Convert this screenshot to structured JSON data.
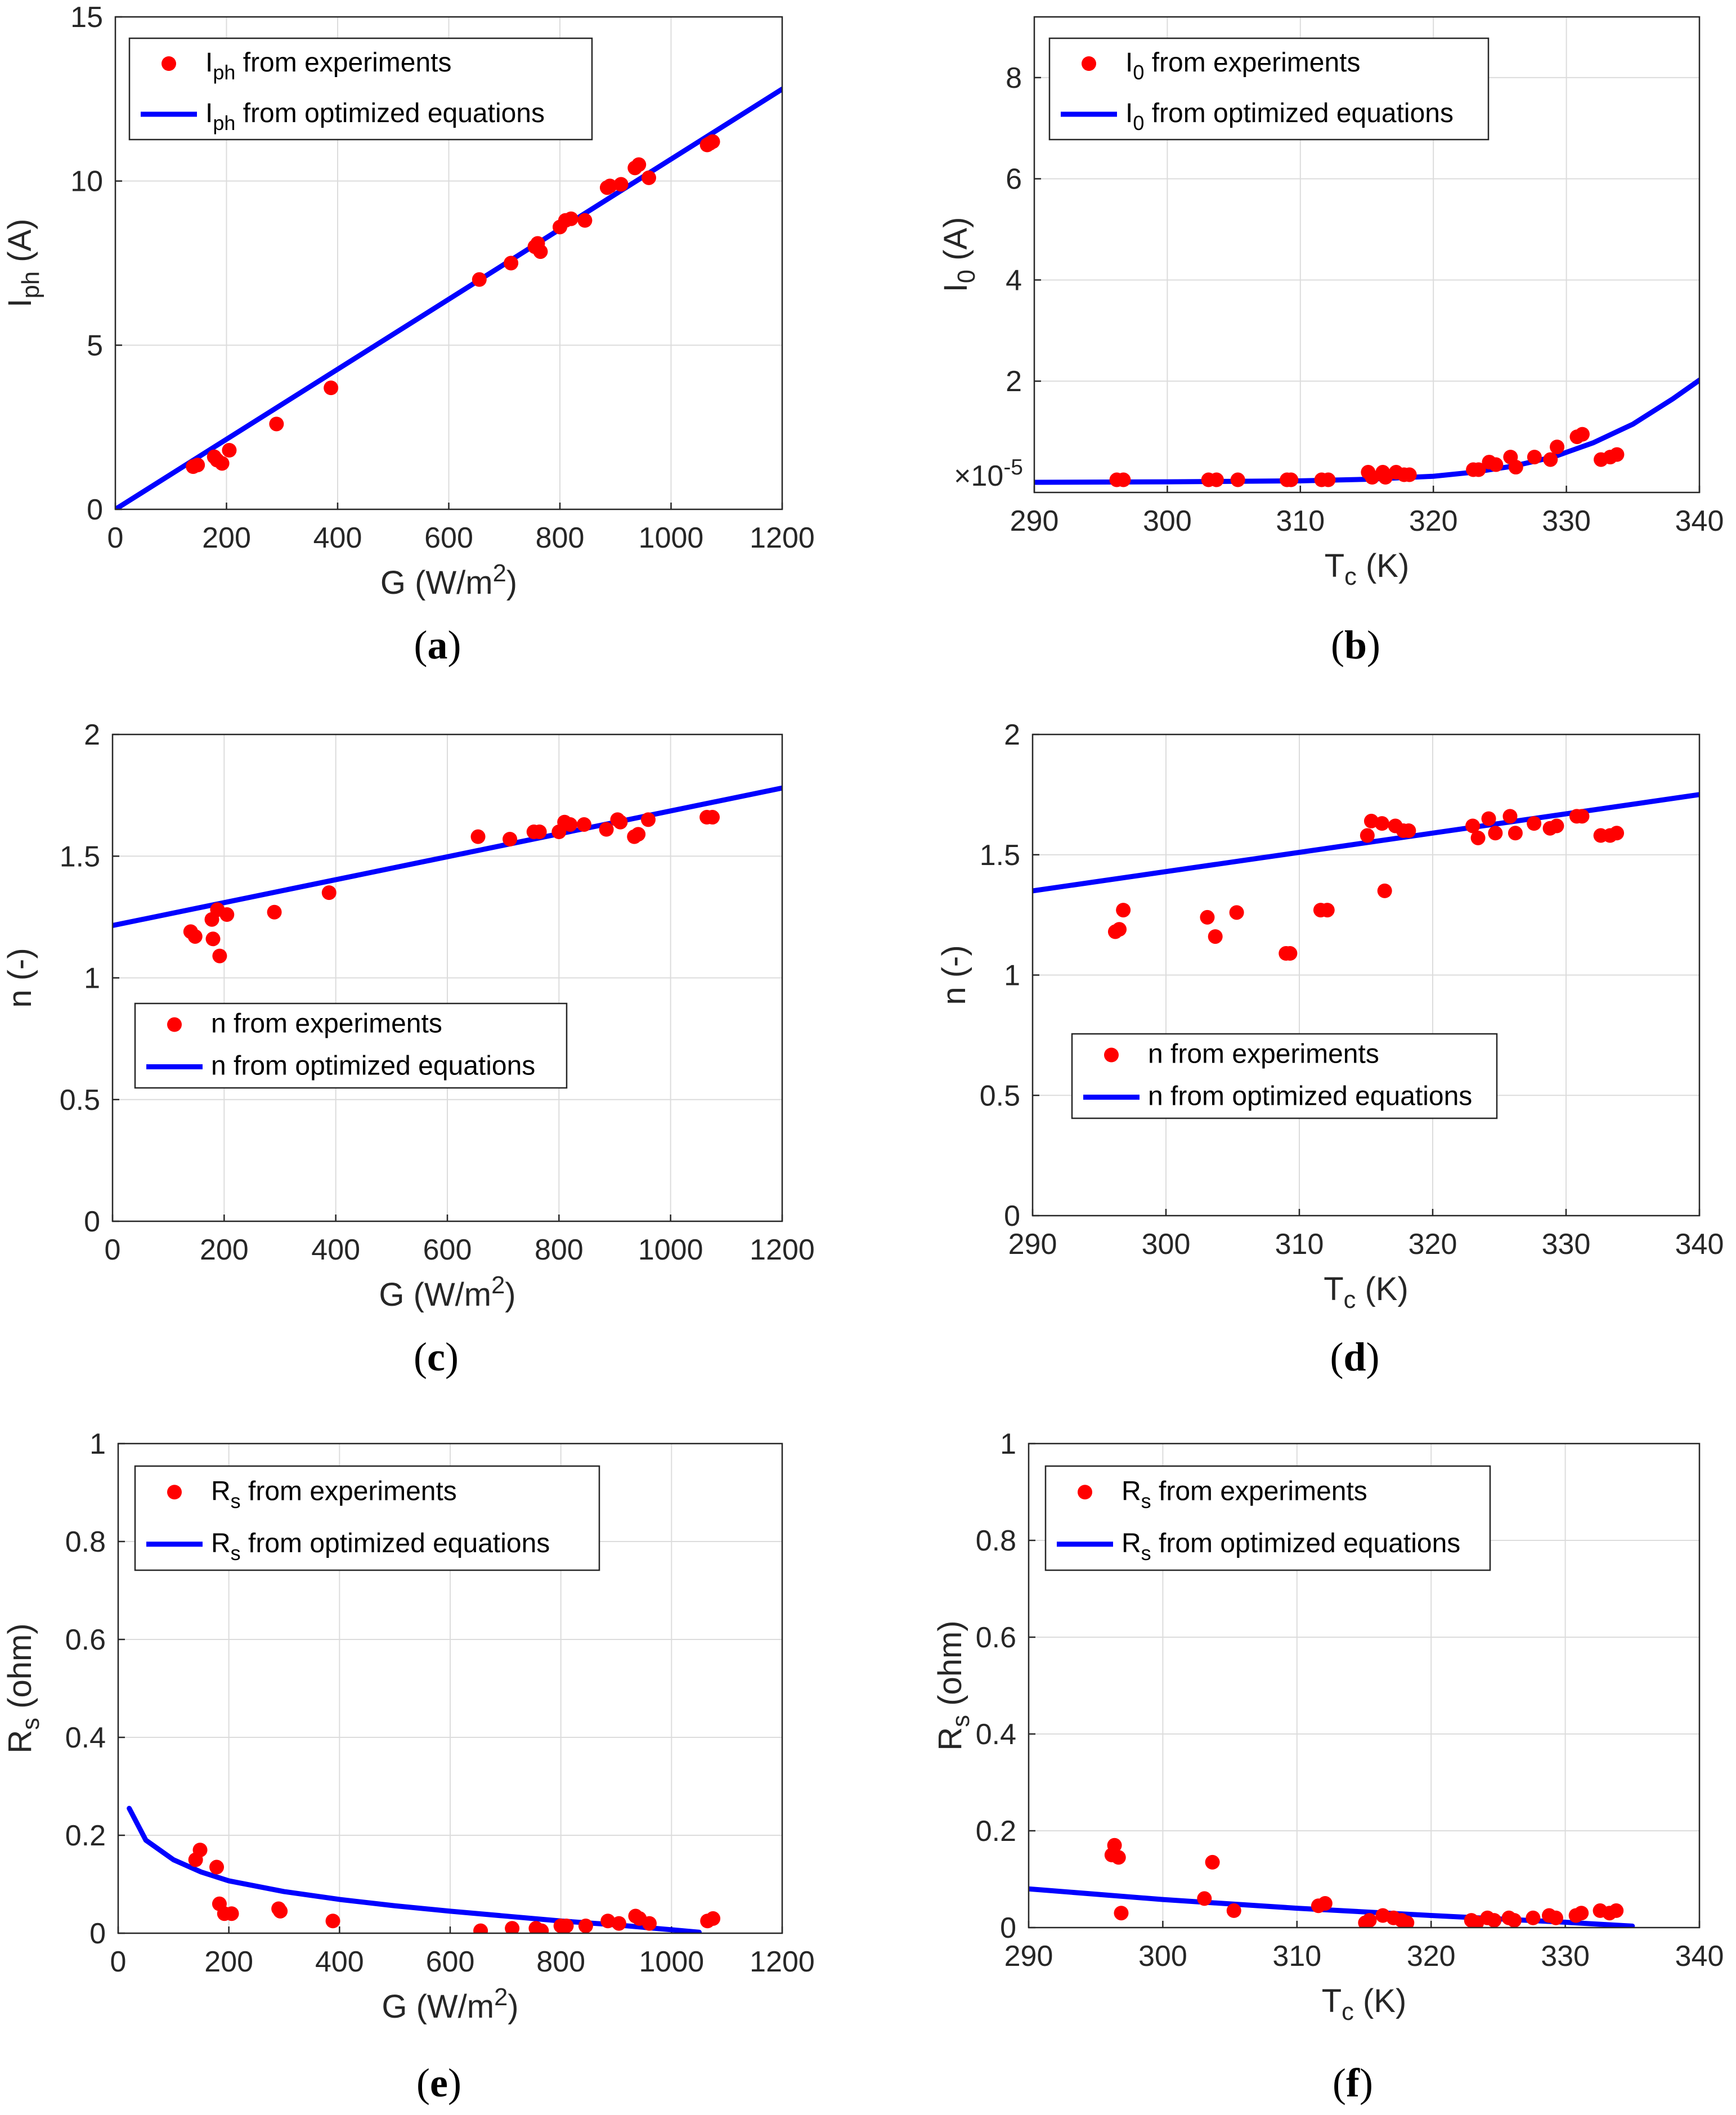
{
  "chart_data": [
    {
      "type": "scatter",
      "panel": "(a)",
      "caption_letter": "a",
      "xlabel": "G (W/m",
      "xlabel_sup": "2",
      "xlabel_after": ")",
      "ylabel": "I",
      "ylabel_sub": "ph",
      "ylabel_after": " (A)",
      "xlim": [
        0,
        1200
      ],
      "ylim": [
        0,
        15
      ],
      "xticks": [
        "0",
        "200",
        "400",
        "600",
        "800",
        "1000",
        "1200"
      ],
      "yticks": [
        "0",
        "5",
        "10",
        "15"
      ],
      "legend_position": "top-left",
      "exponent_label": "",
      "series": [
        {
          "name": "I_ph from experiments",
          "kind": "points",
          "color": "#ff0000",
          "legend_main": "I",
          "legend_sub": "ph",
          "legend_rest": " from experiments",
          "x": [
            140,
            148,
            178,
            183,
            192,
            205,
            290,
            388,
            655,
            712,
            755,
            760,
            765,
            800,
            810,
            820,
            845,
            885,
            890,
            910,
            935,
            942,
            960,
            1065,
            1070,
            1075
          ],
          "y": [
            1.3,
            1.35,
            1.6,
            1.5,
            1.4,
            1.8,
            2.6,
            3.7,
            7.0,
            7.5,
            8.0,
            8.1,
            7.85,
            8.6,
            8.8,
            8.85,
            8.8,
            9.8,
            9.85,
            9.9,
            10.4,
            10.5,
            10.1,
            11.1,
            11.15,
            11.2
          ]
        },
        {
          "name": "I_ph from optimized equations",
          "kind": "line",
          "color": "#0000ff",
          "legend_main": "I",
          "legend_sub": "ph",
          "legend_rest": " from optimized equations",
          "x": [
            0,
            1200
          ],
          "y": [
            0,
            12.8
          ]
        }
      ]
    },
    {
      "type": "scatter",
      "panel": "(b)",
      "caption_letter": "b",
      "xlabel": "T",
      "xlabel_sub": "c",
      "xlabel_after": " (K)",
      "ylabel": "I",
      "ylabel_sub": "0",
      "ylabel_after": " (A)",
      "xlim": [
        290,
        340
      ],
      "ylim": [
        -0.2,
        9.2
      ],
      "xticks": [
        "290",
        "300",
        "310",
        "320",
        "330",
        "340"
      ],
      "yticks": [
        "2",
        "4",
        "6",
        "8"
      ],
      "ytick_values": [
        2,
        4,
        6,
        8
      ],
      "legend_position": "top-left",
      "exponent_label": "×10",
      "exponent_sup": "-5",
      "series": [
        {
          "name": "I_0 from experiments",
          "kind": "points",
          "color": "#ff0000",
          "legend_main": "I",
          "legend_sub": "0",
          "legend_rest": " from experiments",
          "x": [
            296.2,
            296.7,
            303.1,
            303.7,
            305.3,
            309,
            309.3,
            311.6,
            312.1,
            315.1,
            315.4,
            316.2,
            316.4,
            317.2,
            317.8,
            318.2,
            323,
            323.4,
            324.2,
            324.7,
            325.8,
            326.2,
            327.6,
            328.8,
            329.3,
            330.8,
            331.2,
            332.6,
            333.3,
            333.8
          ],
          "y": [
            0.05,
            0.05,
            0.05,
            0.05,
            0.05,
            0.05,
            0.05,
            0.05,
            0.05,
            0.2,
            0.1,
            0.2,
            0.1,
            0.2,
            0.15,
            0.15,
            0.25,
            0.25,
            0.4,
            0.35,
            0.5,
            0.3,
            0.5,
            0.45,
            0.7,
            0.9,
            0.95,
            0.45,
            0.5,
            0.55
          ]
        },
        {
          "name": "I_0 from optimized equations",
          "kind": "line",
          "color": "#0000ff",
          "legend_main": "I",
          "legend_sub": "0",
          "legend_rest": " from optimized equations",
          "x": [
            290,
            300,
            310,
            315,
            320,
            323,
            326,
            329,
            332,
            335,
            338,
            340
          ],
          "y": [
            0.0,
            0.01,
            0.03,
            0.06,
            0.12,
            0.2,
            0.32,
            0.5,
            0.78,
            1.15,
            1.65,
            2.02
          ]
        }
      ]
    },
    {
      "type": "scatter",
      "panel": "(c)",
      "caption_letter": "c",
      "xlabel": "G (W/m",
      "xlabel_sup": "2",
      "xlabel_after": ")",
      "ylabel": "n (-)",
      "xlim": [
        0,
        1200
      ],
      "ylim": [
        0,
        2
      ],
      "xticks": [
        "0",
        "200",
        "400",
        "600",
        "800",
        "1000",
        "1200"
      ],
      "yticks": [
        "0",
        "0.5",
        "1",
        "1.5",
        "2"
      ],
      "legend_position": "lower-left",
      "exponent_label": "",
      "series": [
        {
          "name": "n from experiments",
          "kind": "points",
          "color": "#ff0000",
          "legend_main": "n from experiments",
          "legend_sub": "",
          "legend_rest": "",
          "x": [
            140,
            148,
            178,
            180,
            188,
            192,
            205,
            290,
            388,
            655,
            712,
            755,
            765,
            800,
            810,
            820,
            845,
            885,
            905,
            910,
            935,
            942,
            960,
            1065,
            1075
          ],
          "y": [
            1.19,
            1.17,
            1.24,
            1.16,
            1.28,
            1.09,
            1.26,
            1.27,
            1.35,
            1.58,
            1.57,
            1.6,
            1.6,
            1.6,
            1.64,
            1.63,
            1.63,
            1.61,
            1.65,
            1.64,
            1.58,
            1.59,
            1.65,
            1.66,
            1.66
          ]
        },
        {
          "name": "n from optimized equations",
          "kind": "line",
          "color": "#0000ff",
          "legend_main": "n from optimized equations",
          "legend_sub": "",
          "legend_rest": "",
          "x": [
            0,
            1200
          ],
          "y": [
            1.215,
            1.78
          ]
        }
      ]
    },
    {
      "type": "scatter",
      "panel": "(d)",
      "caption_letter": "d",
      "xlabel": "T",
      "xlabel_sub": "c",
      "xlabel_after": " (K)",
      "ylabel": "n (-)",
      "xlim": [
        290,
        340
      ],
      "ylim": [
        0,
        2
      ],
      "xticks": [
        "290",
        "300",
        "310",
        "320",
        "330",
        "340"
      ],
      "yticks": [
        "0",
        "0.5",
        "1",
        "1.5",
        "2"
      ],
      "legend_position": "lower-left",
      "exponent_label": "",
      "series": [
        {
          "name": "n from experiments",
          "kind": "points",
          "color": "#ff0000",
          "legend_main": "n from experiments",
          "legend_sub": "",
          "legend_rest": "",
          "x": [
            296.2,
            296.5,
            296.8,
            303.1,
            303.7,
            305.3,
            309,
            309.3,
            311.6,
            312.1,
            315.1,
            315.4,
            316.2,
            316.4,
            317.2,
            317.8,
            318.2,
            323,
            323.4,
            324.2,
            324.7,
            325.8,
            326.2,
            327.6,
            328.8,
            329.3,
            330.8,
            331.2,
            332.6,
            333.3,
            333.8
          ],
          "y": [
            1.18,
            1.19,
            1.27,
            1.24,
            1.16,
            1.26,
            1.09,
            1.09,
            1.27,
            1.27,
            1.58,
            1.64,
            1.63,
            1.35,
            1.62,
            1.6,
            1.6,
            1.62,
            1.57,
            1.65,
            1.59,
            1.66,
            1.59,
            1.63,
            1.61,
            1.62,
            1.66,
            1.66,
            1.58,
            1.58,
            1.59
          ]
        },
        {
          "name": "n from optimized equations",
          "kind": "line",
          "color": "#0000ff",
          "legend_main": "n from optimized equations",
          "legend_sub": "",
          "legend_rest": "",
          "x": [
            290,
            340
          ],
          "y": [
            1.35,
            1.75
          ]
        }
      ]
    },
    {
      "type": "scatter",
      "panel": "(e)",
      "caption_letter": "e",
      "xlabel": "G (W/m",
      "xlabel_sup": "2",
      "xlabel_after": ")",
      "ylabel": "R",
      "ylabel_sub": "s",
      "ylabel_after": " (ohm)",
      "xlim": [
        0,
        1200
      ],
      "ylim": [
        0,
        1
      ],
      "xticks": [
        "0",
        "200",
        "400",
        "600",
        "800",
        "1000",
        "1200"
      ],
      "yticks": [
        "0",
        "0.2",
        "0.4",
        "0.6",
        "0.8",
        "1"
      ],
      "legend_position": "top-left",
      "exponent_label": "",
      "series": [
        {
          "name": "R_s from experiments",
          "kind": "points",
          "color": "#ff0000",
          "legend_main": "R",
          "legend_sub": "s",
          "legend_rest": " from experiments",
          "x": [
            140,
            148,
            178,
            183,
            192,
            205,
            290,
            293,
            388,
            655,
            712,
            755,
            765,
            800,
            810,
            845,
            885,
            905,
            935,
            942,
            960,
            1065,
            1075
          ],
          "y": [
            0.15,
            0.17,
            0.135,
            0.06,
            0.04,
            0.04,
            0.05,
            0.045,
            0.025,
            0.005,
            0.01,
            0.01,
            0.005,
            0.015,
            0.015,
            0.015,
            0.025,
            0.02,
            0.035,
            0.03,
            0.02,
            0.025,
            0.03
          ]
        },
        {
          "name": "R_s from optimized equations",
          "kind": "line",
          "color": "#0000ff",
          "legend_main": "R",
          "legend_sub": "s",
          "legend_rest": " from optimized equations",
          "x": [
            20,
            50,
            100,
            150,
            200,
            300,
            400,
            500,
            600,
            700,
            800,
            900,
            1000,
            1050
          ],
          "y": [
            0.255,
            0.19,
            0.15,
            0.125,
            0.107,
            0.085,
            0.069,
            0.056,
            0.045,
            0.035,
            0.025,
            0.017,
            0.007,
            0.002
          ]
        }
      ]
    },
    {
      "type": "scatter",
      "panel": "(f)",
      "caption_letter": "f",
      "xlabel": "T",
      "xlabel_sub": "c",
      "xlabel_after": " (K)",
      "ylabel": "R",
      "ylabel_sub": "s",
      "ylabel_after": " (ohm)",
      "xlim": [
        290,
        340
      ],
      "ylim": [
        0,
        1
      ],
      "xticks": [
        "290",
        "300",
        "310",
        "320",
        "330",
        "340"
      ],
      "yticks": [
        "0",
        "0.2",
        "0.4",
        "0.6",
        "0.8",
        "1"
      ],
      "legend_position": "top-left",
      "exponent_label": "",
      "series": [
        {
          "name": "R_s from experiments",
          "kind": "points",
          "color": "#ff0000",
          "legend_main": "R",
          "legend_sub": "s",
          "legend_rest": " from experiments",
          "x": [
            296.2,
            296.4,
            296.7,
            296.9,
            303.1,
            303.7,
            305.3,
            311.6,
            312.1,
            315.1,
            315.4,
            316.4,
            317.2,
            317.8,
            318.2,
            323,
            323.4,
            324.2,
            324.7,
            325.8,
            326.2,
            327.6,
            328.8,
            329.3,
            330.8,
            331.2,
            332.6,
            333.3,
            333.8
          ],
          "y": [
            0.15,
            0.17,
            0.145,
            0.03,
            0.06,
            0.135,
            0.035,
            0.045,
            0.05,
            0.01,
            0.015,
            0.025,
            0.02,
            0.015,
            0.01,
            0.015,
            0.01,
            0.02,
            0.015,
            0.02,
            0.015,
            0.02,
            0.025,
            0.02,
            0.025,
            0.03,
            0.035,
            0.03,
            0.035
          ]
        },
        {
          "name": "R_s from optimized equations",
          "kind": "line",
          "color": "#0000ff",
          "legend_main": "R",
          "legend_sub": "s",
          "legend_rest": " from optimized equations",
          "x": [
            290,
            300,
            310,
            320,
            330,
            335
          ],
          "y": [
            0.08,
            0.058,
            0.04,
            0.025,
            0.011,
            0.003
          ]
        }
      ]
    }
  ]
}
